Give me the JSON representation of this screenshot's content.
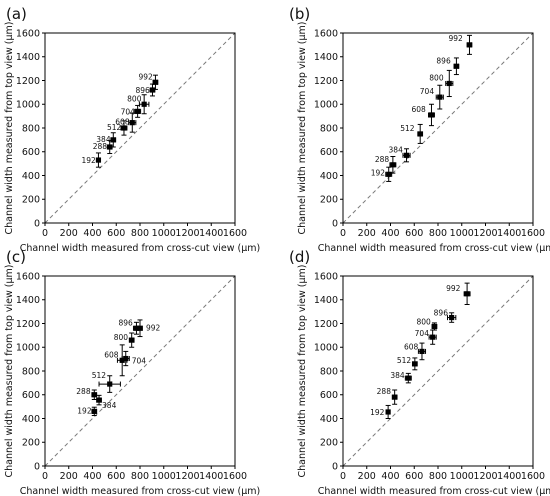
{
  "panel_labels": [
    "(a)",
    "(b)",
    "(c)",
    "(d)"
  ],
  "xlabel": "Channel width measured from cross-cut view (μm)",
  "ylabel": "Channel width measured from top view (μm)",
  "chart_data": [
    {
      "type": "scatter",
      "panel": "(a)",
      "xlabel": "Channel width measured from cross-cut view (μm)",
      "ylabel": "Channel width measured from top view (μm)",
      "xlim": [
        0,
        1600
      ],
      "ylim": [
        0,
        1600
      ],
      "xticks": [
        0,
        200,
        400,
        600,
        800,
        1000,
        1200,
        1400,
        1600
      ],
      "yticks": [
        0,
        200,
        400,
        600,
        800,
        1000,
        1200,
        1400,
        1600
      ],
      "reference_line": "y = x (dashed)",
      "grid": false,
      "points": [
        {
          "label": "192",
          "x": 450,
          "y": 530,
          "xerr": 15,
          "yerr": 60
        },
        {
          "label": "288",
          "x": 545,
          "y": 640,
          "xerr": 20,
          "yerr": 55
        },
        {
          "label": "384",
          "x": 575,
          "y": 700,
          "xerr": 20,
          "yerr": 60
        },
        {
          "label": "512",
          "x": 665,
          "y": 800,
          "xerr": 25,
          "yerr": 60
        },
        {
          "label": "608",
          "x": 735,
          "y": 845,
          "xerr": 30,
          "yerr": 80
        },
        {
          "label": "704",
          "x": 780,
          "y": 940,
          "xerr": 25,
          "yerr": 50
        },
        {
          "label": "800",
          "x": 835,
          "y": 1000,
          "xerr": 40,
          "yerr": 80
        },
        {
          "label": "896",
          "x": 905,
          "y": 1120,
          "xerr": 20,
          "yerr": 50
        },
        {
          "label": "992",
          "x": 930,
          "y": 1185,
          "xerr": 20,
          "yerr": 60
        }
      ]
    },
    {
      "type": "scatter",
      "panel": "(b)",
      "xlabel": "Channel width measured from cross-cut view (μm)",
      "ylabel": "Channel width measured from top view (μm)",
      "xlim": [
        0,
        1600
      ],
      "ylim": [
        0,
        1600
      ],
      "xticks": [
        0,
        200,
        400,
        600,
        800,
        1000,
        1200,
        1400,
        1600
      ],
      "yticks": [
        0,
        200,
        400,
        600,
        800,
        1000,
        1200,
        1400,
        1600
      ],
      "reference_line": "y = x (dashed)",
      "grid": false,
      "points": [
        {
          "label": "192",
          "x": 385,
          "y": 410,
          "xerr": 25,
          "yerr": 60
        },
        {
          "label": "288",
          "x": 420,
          "y": 490,
          "xerr": 25,
          "yerr": 70
        },
        {
          "label": "384",
          "x": 535,
          "y": 570,
          "xerr": 30,
          "yerr": 55
        },
        {
          "label": "512",
          "x": 650,
          "y": 750,
          "xerr": 20,
          "yerr": 80
        },
        {
          "label": "608",
          "x": 745,
          "y": 910,
          "xerr": 25,
          "yerr": 90
        },
        {
          "label": "704",
          "x": 815,
          "y": 1060,
          "xerr": 30,
          "yerr": 100
        },
        {
          "label": "800",
          "x": 895,
          "y": 1175,
          "xerr": 30,
          "yerr": 110
        },
        {
          "label": "896",
          "x": 955,
          "y": 1320,
          "xerr": 20,
          "yerr": 70
        },
        {
          "label": "992",
          "x": 1065,
          "y": 1500,
          "xerr": 20,
          "yerr": 80
        }
      ]
    },
    {
      "type": "scatter",
      "panel": "(c)",
      "xlabel": "Channel width measured from cross-cut view (μm)",
      "ylabel": "Channel width measured from top view (μm)",
      "xlim": [
        0,
        1600
      ],
      "ylim": [
        0,
        1600
      ],
      "xticks": [
        0,
        200,
        400,
        600,
        800,
        1000,
        1200,
        1400,
        1600
      ],
      "yticks": [
        0,
        200,
        400,
        600,
        800,
        1000,
        1200,
        1400,
        1600
      ],
      "reference_line": "y = x (dashed)",
      "grid": false,
      "points": [
        {
          "label": "192",
          "x": 415,
          "y": 460,
          "xerr": 20,
          "yerr": 35
        },
        {
          "label": "288",
          "x": 415,
          "y": 600,
          "xerr": 20,
          "yerr": 40
        },
        {
          "label": "384",
          "x": 455,
          "y": 555,
          "xerr": 20,
          "yerr": 40
        },
        {
          "label": "512",
          "x": 545,
          "y": 690,
          "xerr": 90,
          "yerr": 70
        },
        {
          "label": "608",
          "x": 650,
          "y": 890,
          "xerr": 40,
          "yerr": 130
        },
        {
          "label": "704",
          "x": 680,
          "y": 905,
          "xerr": 30,
          "yerr": 60
        },
        {
          "label": "800",
          "x": 730,
          "y": 1060,
          "xerr": 20,
          "yerr": 60
        },
        {
          "label": "896",
          "x": 770,
          "y": 1160,
          "xerr": 25,
          "yerr": 50
        },
        {
          "label": "992",
          "x": 800,
          "y": 1160,
          "xerr": 20,
          "yerr": 70
        }
      ]
    },
    {
      "type": "scatter",
      "panel": "(d)",
      "xlabel": "Channel width measured from cross-cut view (μm)",
      "ylabel": "Channel width measured from top view (μm)",
      "xlim": [
        0,
        1600
      ],
      "ylim": [
        0,
        1600
      ],
      "xticks": [
        0,
        200,
        400,
        600,
        800,
        1000,
        1200,
        1400,
        1600
      ],
      "yticks": [
        0,
        200,
        400,
        600,
        800,
        1000,
        1200,
        1400,
        1600
      ],
      "reference_line": "y = x (dashed)",
      "grid": false,
      "points": [
        {
          "label": "192",
          "x": 380,
          "y": 455,
          "xerr": 15,
          "yerr": 55
        },
        {
          "label": "288",
          "x": 435,
          "y": 580,
          "xerr": 20,
          "yerr": 60
        },
        {
          "label": "384",
          "x": 550,
          "y": 740,
          "xerr": 25,
          "yerr": 40
        },
        {
          "label": "512",
          "x": 605,
          "y": 860,
          "xerr": 20,
          "yerr": 50
        },
        {
          "label": "608",
          "x": 665,
          "y": 965,
          "xerr": 30,
          "yerr": 70
        },
        {
          "label": "704",
          "x": 755,
          "y": 1085,
          "xerr": 30,
          "yerr": 60
        },
        {
          "label": "800",
          "x": 770,
          "y": 1175,
          "xerr": 20,
          "yerr": 30
        },
        {
          "label": "896",
          "x": 915,
          "y": 1250,
          "xerr": 35,
          "yerr": 40
        },
        {
          "label": "992",
          "x": 1045,
          "y": 1450,
          "xerr": 25,
          "yerr": 90
        }
      ]
    }
  ]
}
